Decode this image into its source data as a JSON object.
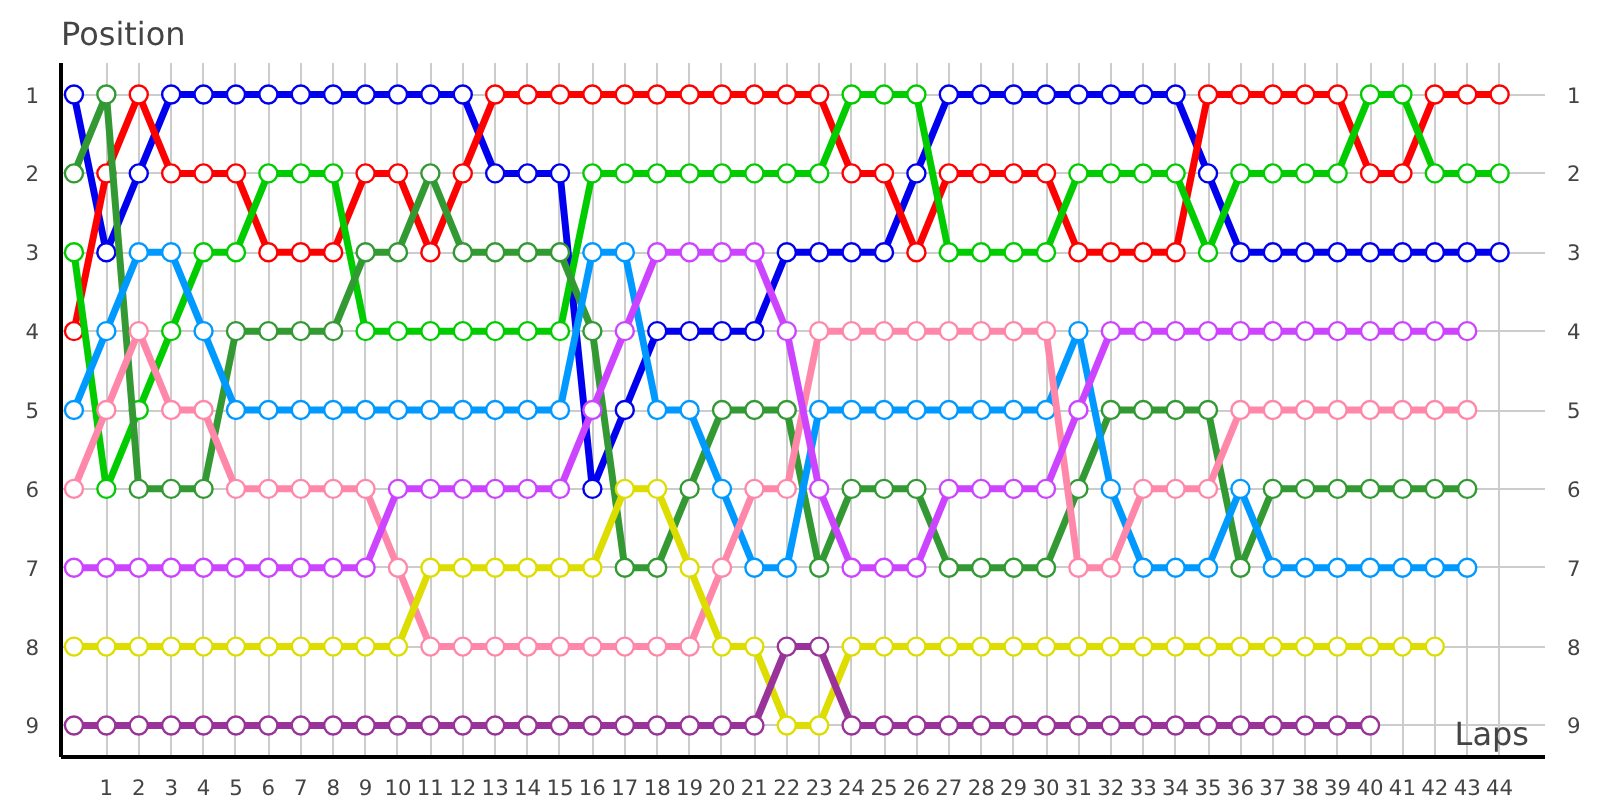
{
  "chart_data": {
    "type": "line",
    "ylabel": "Position",
    "xlabel": "Laps",
    "marker": "circle",
    "line_style": "solid",
    "grid": true,
    "x": [
      0,
      1,
      2,
      3,
      4,
      5,
      6,
      7,
      8,
      9,
      10,
      11,
      12,
      13,
      14,
      15,
      16,
      17,
      18,
      19,
      20,
      21,
      22,
      23,
      24,
      25,
      26,
      27,
      28,
      29,
      30,
      31,
      32,
      33,
      34,
      35,
      36,
      37,
      38,
      39,
      40,
      41,
      42,
      43,
      44
    ],
    "xlim": [
      -0.4,
      45.4
    ],
    "xticks": [
      1,
      2,
      3,
      4,
      5,
      6,
      7,
      8,
      9,
      10,
      11,
      12,
      13,
      14,
      15,
      16,
      17,
      18,
      19,
      20,
      21,
      22,
      23,
      24,
      25,
      26,
      27,
      28,
      29,
      30,
      31,
      32,
      33,
      34,
      35,
      36,
      37,
      38,
      39,
      40,
      41,
      42,
      43,
      44
    ],
    "ylim": [
      9.4,
      0.6
    ],
    "yticks": [
      1,
      2,
      3,
      4,
      5,
      6,
      7,
      8,
      9
    ],
    "y2lim": [
      9.4,
      0.6
    ],
    "y2ticks": [
      1,
      2,
      3,
      4,
      5,
      6,
      7,
      8,
      9
    ],
    "series": [
      {
        "color": "#0000ee",
        "values": [
          1,
          3,
          2,
          1,
          1,
          1,
          1,
          1,
          1,
          1,
          1,
          1,
          1,
          2,
          2,
          2,
          6,
          5,
          4,
          4,
          4,
          4,
          3,
          3,
          3,
          3,
          2,
          1,
          1,
          1,
          1,
          1,
          1,
          1,
          1,
          2,
          3,
          3,
          3,
          3,
          3,
          3,
          3,
          3,
          3
        ]
      },
      {
        "color": "#ff0000",
        "values": [
          4,
          2,
          1,
          2,
          2,
          2,
          3,
          3,
          3,
          2,
          2,
          3,
          2,
          1,
          1,
          1,
          1,
          1,
          1,
          1,
          1,
          1,
          1,
          1,
          2,
          2,
          3,
          2,
          2,
          2,
          2,
          3,
          3,
          3,
          3,
          1,
          1,
          1,
          1,
          1,
          2,
          2,
          1,
          1,
          1
        ]
      },
      {
        "color": "#00cc00",
        "values": [
          3,
          6,
          5,
          4,
          3,
          3,
          2,
          2,
          2,
          4,
          4,
          4,
          4,
          4,
          4,
          4,
          2,
          2,
          2,
          2,
          2,
          2,
          2,
          2,
          1,
          1,
          1,
          3,
          3,
          3,
          3,
          2,
          2,
          2,
          2,
          3,
          2,
          2,
          2,
          2,
          1,
          1,
          2,
          2,
          2
        ]
      },
      {
        "color": "#339933",
        "values": [
          2,
          1,
          6,
          6,
          6,
          4,
          4,
          4,
          4,
          3,
          3,
          2,
          3,
          3,
          3,
          3,
          4,
          7,
          7,
          6,
          5,
          5,
          5,
          7,
          6,
          6,
          6,
          7,
          7,
          7,
          7,
          6,
          5,
          5,
          5,
          5,
          7,
          6,
          6,
          6,
          6,
          6,
          6,
          6,
          null
        ]
      },
      {
        "color": "#0099ff",
        "values": [
          5,
          4,
          3,
          3,
          4,
          5,
          5,
          5,
          5,
          5,
          5,
          5,
          5,
          5,
          5,
          5,
          3,
          3,
          5,
          5,
          6,
          7,
          7,
          5,
          5,
          5,
          5,
          5,
          5,
          5,
          5,
          4,
          6,
          7,
          7,
          7,
          6,
          7,
          7,
          7,
          7,
          7,
          7,
          7,
          null
        ]
      },
      {
        "color": "#ff88aa",
        "values": [
          6,
          5,
          4,
          5,
          5,
          6,
          6,
          6,
          6,
          6,
          7,
          8,
          8,
          8,
          8,
          8,
          8,
          8,
          8,
          8,
          7,
          6,
          6,
          4,
          4,
          4,
          4,
          4,
          4,
          4,
          4,
          7,
          7,
          6,
          6,
          6,
          5,
          5,
          5,
          5,
          5,
          5,
          5,
          5,
          null
        ]
      },
      {
        "color": "#cc44ff",
        "values": [
          7,
          7,
          7,
          7,
          7,
          7,
          7,
          7,
          7,
          7,
          6,
          6,
          6,
          6,
          6,
          6,
          5,
          4,
          3,
          3,
          3,
          3,
          4,
          6,
          7,
          7,
          7,
          6,
          6,
          6,
          6,
          5,
          4,
          4,
          4,
          4,
          4,
          4,
          4,
          4,
          4,
          4,
          4,
          4,
          null
        ]
      },
      {
        "color": "#dddd00",
        "values": [
          8,
          8,
          8,
          8,
          8,
          8,
          8,
          8,
          8,
          8,
          8,
          7,
          7,
          7,
          7,
          7,
          7,
          6,
          6,
          7,
          8,
          8,
          9,
          9,
          8,
          8,
          8,
          8,
          8,
          8,
          8,
          8,
          8,
          8,
          8,
          8,
          8,
          8,
          8,
          8,
          8,
          8,
          8,
          null,
          null
        ]
      },
      {
        "color": "#993399",
        "values": [
          9,
          9,
          9,
          9,
          9,
          9,
          9,
          9,
          9,
          9,
          9,
          9,
          9,
          9,
          9,
          9,
          9,
          9,
          9,
          9,
          9,
          9,
          8,
          8,
          9,
          9,
          9,
          9,
          9,
          9,
          9,
          9,
          9,
          9,
          9,
          9,
          9,
          9,
          9,
          9,
          9,
          null,
          null,
          null,
          null
        ]
      }
    ]
  }
}
